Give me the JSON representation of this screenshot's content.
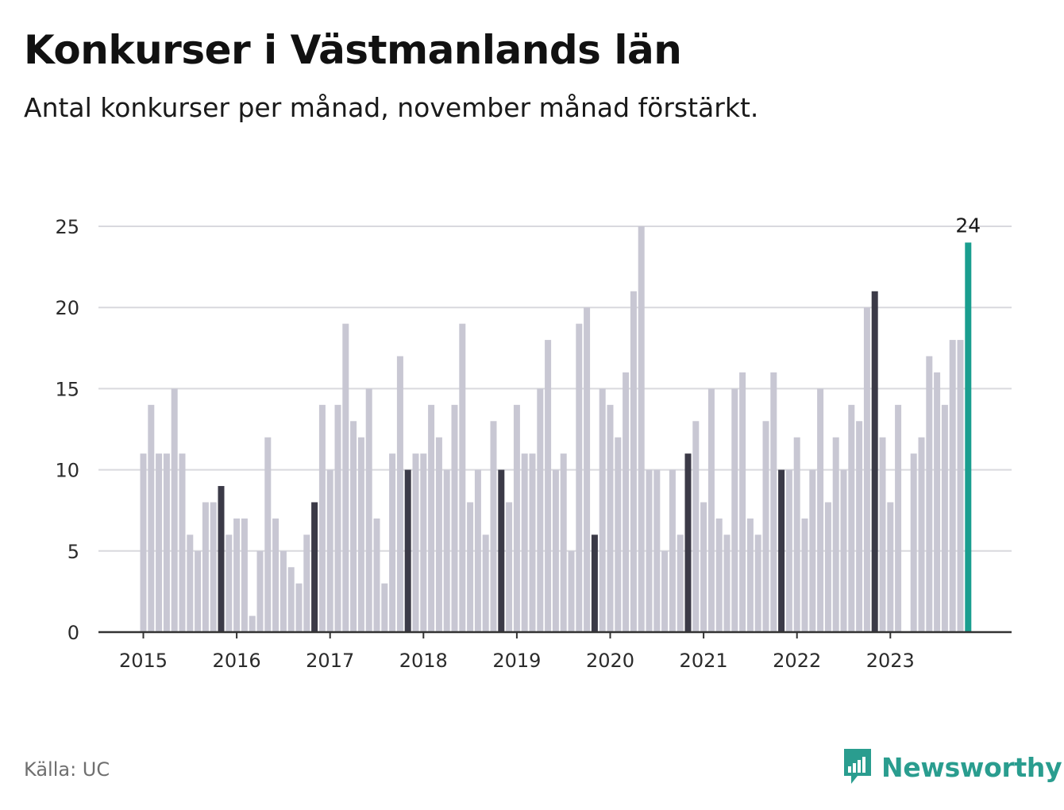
{
  "title": "Konkurser i Västmanlands län",
  "subtitle": "Antal konkurser per månad, november månad förstärkt.",
  "source": "Källa: UC",
  "brand": {
    "name": "Newsworthy",
    "icon": "chat-bar-chart-icon"
  },
  "colors": {
    "bar": "#c8c7d3",
    "highlight": "#3b3a47",
    "latest": "#1a9e8f",
    "grid": "#d9d9de",
    "axis": "#333333",
    "brand": "#2a9d8f"
  },
  "chart_data": {
    "type": "bar",
    "start": "2015-01",
    "x_tick_labels": [
      "2015",
      "2016",
      "2017",
      "2018",
      "2019",
      "2020",
      "2021",
      "2022",
      "2023"
    ],
    "y_ticks": [
      0,
      5,
      10,
      15,
      20,
      25
    ],
    "ylim": [
      0,
      25
    ],
    "grid": true,
    "highlight": "November",
    "last_value_label": "24",
    "values": [
      11,
      14,
      11,
      11,
      15,
      11,
      6,
      5,
      8,
      8,
      9,
      6,
      7,
      7,
      1,
      5,
      12,
      7,
      5,
      4,
      3,
      6,
      8,
      14,
      10,
      14,
      19,
      13,
      12,
      15,
      7,
      3,
      11,
      17,
      10,
      11,
      11,
      14,
      12,
      10,
      14,
      19,
      8,
      10,
      6,
      13,
      10,
      8,
      14,
      11,
      11,
      15,
      18,
      10,
      11,
      5,
      19,
      20,
      6,
      15,
      14,
      12,
      16,
      21,
      25,
      10,
      10,
      5,
      10,
      6,
      11,
      13,
      8,
      15,
      7,
      6,
      15,
      16,
      7,
      6,
      13,
      16,
      10,
      10,
      12,
      7,
      10,
      15,
      8,
      12,
      10,
      14,
      13,
      20,
      21,
      12,
      8,
      14,
      0,
      11,
      12,
      17,
      16,
      14,
      18,
      18,
      24
    ]
  }
}
